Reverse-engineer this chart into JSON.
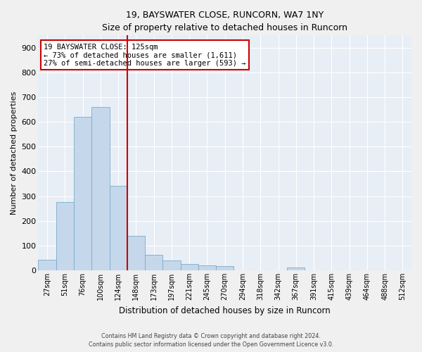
{
  "title": "19, BAYSWATER CLOSE, RUNCORN, WA7 1NY",
  "subtitle": "Size of property relative to detached houses in Runcorn",
  "xlabel": "Distribution of detached houses by size in Runcorn",
  "ylabel": "Number of detached properties",
  "bar_color": "#c5d8eb",
  "bar_edge_color": "#7aaacb",
  "bin_labels": [
    "27sqm",
    "51sqm",
    "76sqm",
    "100sqm",
    "124sqm",
    "148sqm",
    "173sqm",
    "197sqm",
    "221sqm",
    "245sqm",
    "270sqm",
    "294sqm",
    "318sqm",
    "342sqm",
    "367sqm",
    "391sqm",
    "415sqm",
    "439sqm",
    "464sqm",
    "488sqm",
    "512sqm"
  ],
  "bar_values": [
    42,
    275,
    620,
    660,
    340,
    140,
    62,
    40,
    27,
    21,
    16,
    0,
    0,
    0,
    10,
    0,
    0,
    0,
    0,
    0,
    0
  ],
  "property_line_color": "#cc0000",
  "property_line_bin_index": 4,
  "annotation_line1": "19 BAYSWATER CLOSE: 125sqm",
  "annotation_line2": "← 73% of detached houses are smaller (1,611)",
  "annotation_line3": "27% of semi-detached houses are larger (593) →",
  "annotation_box_edge_color": "#cc0000",
  "ylim_max": 950,
  "yticks": [
    0,
    100,
    200,
    300,
    400,
    500,
    600,
    700,
    800,
    900
  ],
  "footnote_line1": "Contains HM Land Registry data © Crown copyright and database right 2024.",
  "footnote_line2": "Contains public sector information licensed under the Open Government Licence v3.0.",
  "plot_bg_color": "#e8eef5",
  "fig_bg_color": "#f0f0f0",
  "grid_color": "#ffffff"
}
